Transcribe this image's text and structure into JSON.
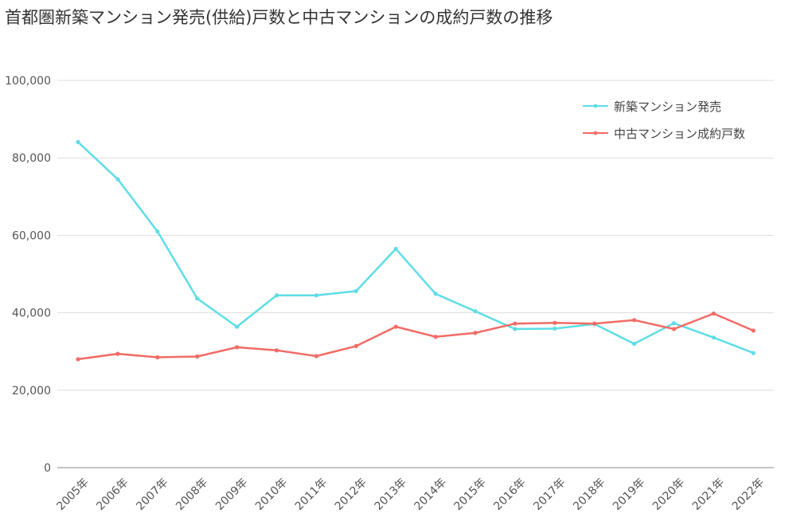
{
  "chart_data": {
    "type": "line",
    "title": "首都圏新築マンション発売(供給)戸数と中古マンションの成約戸数の推移",
    "xlabel": "",
    "ylabel": "",
    "categories": [
      "2005年",
      "2006年",
      "2007年",
      "2008年",
      "2009年",
      "2010年",
      "2011年",
      "2012年",
      "2013年",
      "2014年",
      "2015年",
      "2016年",
      "2017年",
      "2018年",
      "2019年",
      "2020年",
      "2021年",
      "2022年"
    ],
    "ylim": [
      0,
      100000
    ],
    "yticks": [
      "0",
      "20,000",
      "40,000",
      "60,000",
      "80,000",
      "100,000"
    ],
    "ytick_values": [
      0,
      20000,
      40000,
      60000,
      80000,
      100000
    ],
    "grid": true,
    "legend_position": "top-right",
    "series": [
      {
        "name": "新築マンション発売",
        "color": "#5fdde5",
        "values": [
          84100,
          74500,
          61000,
          43700,
          36400,
          44500,
          44500,
          45600,
          56500,
          44900,
          40400,
          35800,
          35900,
          37100,
          32000,
          37300,
          33600,
          29600
        ]
      },
      {
        "name": "中古マンション成約戸数",
        "color": "#f26b66",
        "values": [
          28000,
          29400,
          28500,
          28700,
          31100,
          30300,
          28800,
          31400,
          36400,
          33800,
          34800,
          37200,
          37400,
          37200,
          38100,
          35800,
          39800,
          35400
        ]
      }
    ]
  }
}
